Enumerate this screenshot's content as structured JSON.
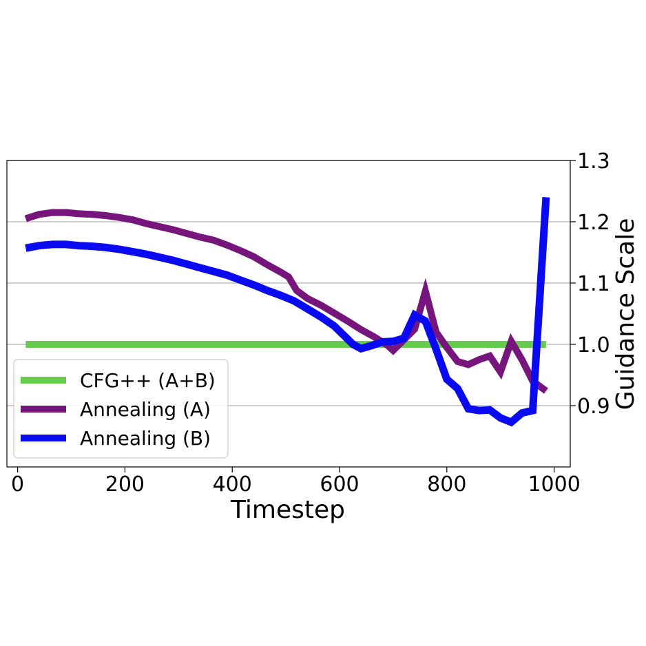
{
  "chart_data": {
    "type": "line",
    "xlabel": "Timestep",
    "ylabel": "Guidance Scale",
    "xlim": [
      -20,
      1030
    ],
    "ylim": [
      0.8,
      1.3
    ],
    "xticks": [
      0,
      200,
      400,
      600,
      800,
      1000
    ],
    "yticks": [
      0.9,
      1.0,
      1.1,
      1.2,
      1.3
    ],
    "xtick_labels": [
      "0",
      "200",
      "400",
      "600",
      "800",
      "1000"
    ],
    "ytick_labels": [
      "0.9",
      "1.0",
      "1.1",
      "1.2",
      "1.3"
    ],
    "y_axis_side": "right",
    "grid": "horizontal",
    "legend_position": "lower-left",
    "series": [
      {
        "name": "CFG++ (A+B)",
        "color": "#66cc4d",
        "x": [
          15,
          985
        ],
        "y": [
          1.0,
          1.0
        ]
      },
      {
        "name": "Annealing (A)",
        "color": "#76167c",
        "x": [
          15,
          40,
          65,
          90,
          115,
          140,
          165,
          190,
          215,
          240,
          265,
          290,
          315,
          340,
          365,
          390,
          415,
          440,
          465,
          490,
          505,
          520,
          540,
          565,
          590,
          615,
          640,
          665,
          690,
          700,
          715,
          740,
          760,
          780,
          800,
          820,
          840,
          860,
          880,
          900,
          920,
          940,
          960,
          985
        ],
        "y": [
          1.205,
          1.212,
          1.215,
          1.215,
          1.213,
          1.212,
          1.21,
          1.207,
          1.203,
          1.197,
          1.192,
          1.187,
          1.181,
          1.175,
          1.17,
          1.162,
          1.153,
          1.143,
          1.13,
          1.118,
          1.11,
          1.088,
          1.075,
          1.064,
          1.051,
          1.038,
          1.024,
          1.012,
          0.998,
          0.99,
          1.003,
          1.025,
          1.087,
          1.02,
          0.995,
          0.972,
          0.967,
          0.975,
          0.981,
          0.955,
          1.005,
          0.975,
          0.94,
          0.924
        ]
      },
      {
        "name": "Annealing (B)",
        "color": "#0a0af0",
        "x": [
          15,
          40,
          65,
          90,
          115,
          140,
          165,
          190,
          215,
          240,
          265,
          290,
          315,
          340,
          365,
          390,
          415,
          440,
          465,
          490,
          515,
          540,
          565,
          590,
          610,
          625,
          640,
          660,
          680,
          700,
          720,
          740,
          760,
          780,
          800,
          820,
          840,
          860,
          880,
          900,
          920,
          940,
          960,
          985
        ],
        "y": [
          1.157,
          1.161,
          1.163,
          1.163,
          1.161,
          1.16,
          1.158,
          1.155,
          1.151,
          1.147,
          1.142,
          1.137,
          1.131,
          1.125,
          1.119,
          1.113,
          1.105,
          1.097,
          1.088,
          1.08,
          1.071,
          1.058,
          1.045,
          1.03,
          1.013,
          1.0,
          0.993,
          0.998,
          1.004,
          1.005,
          1.01,
          1.048,
          1.038,
          0.992,
          0.943,
          0.928,
          0.895,
          0.892,
          0.893,
          0.88,
          0.873,
          0.888,
          0.892,
          1.24
        ]
      }
    ]
  }
}
